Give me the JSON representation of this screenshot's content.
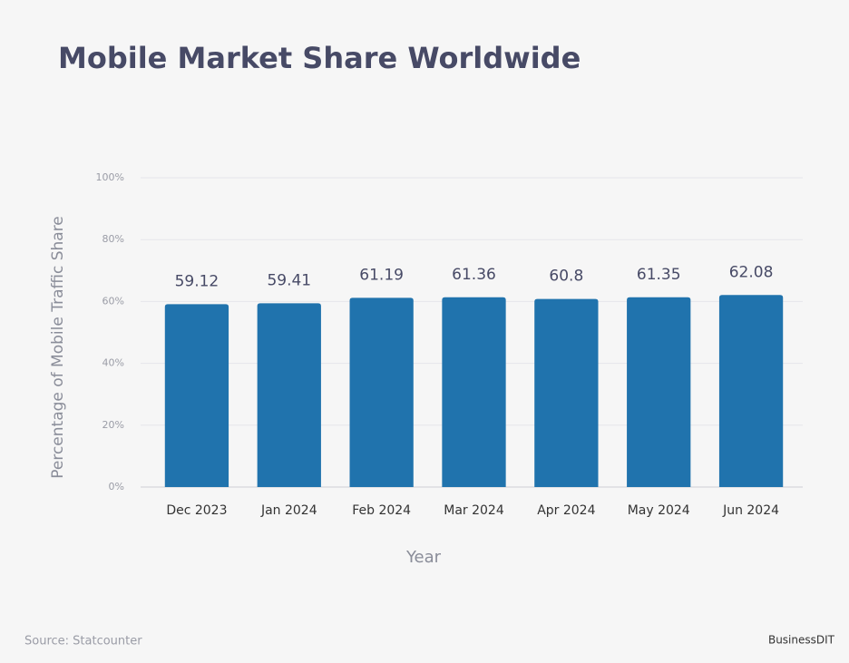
{
  "chart_data": {
    "type": "bar",
    "title": "Mobile Market Share Worldwide",
    "x_label": "Year",
    "y_label": "Percentage of Mobile  Traffic Share",
    "categories": [
      "Dec 2023",
      "Jan 2024",
      "Feb 2024",
      "Mar 2024",
      "Apr 2024",
      "May 2024",
      "Jun 2024"
    ],
    "values": [
      59.12,
      59.41,
      61.19,
      61.36,
      60.8,
      61.35,
      62.08
    ],
    "color": "#2073ad",
    "ylim": [
      0,
      100
    ],
    "yticks": [
      {
        "value": 0,
        "label": "0%"
      },
      {
        "value": 20,
        "label": "20%"
      },
      {
        "value": 40,
        "label": "40%"
      },
      {
        "value": 60,
        "label": "60%"
      },
      {
        "value": 80,
        "label": "80%"
      },
      {
        "value": 100,
        "label": "100%"
      }
    ],
    "grid": true,
    "source": "Source: Statcounter",
    "brand": "BusinessDIT"
  }
}
